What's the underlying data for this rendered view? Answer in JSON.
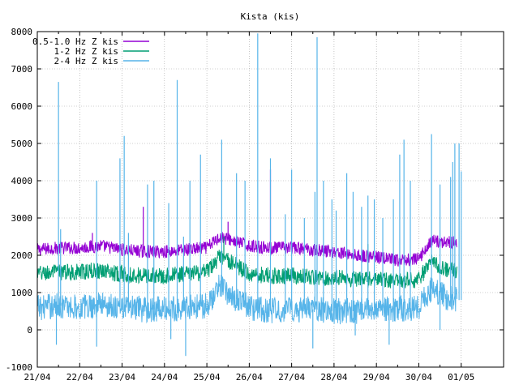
{
  "chart_data": {
    "type": "line",
    "title": "Kista (kis)",
    "xlabel": "",
    "ylabel": "",
    "ylim": [
      -1000,
      8000
    ],
    "yticks": [
      -1000,
      0,
      1000,
      2000,
      3000,
      4000,
      5000,
      6000,
      7000,
      8000
    ],
    "xlim": [
      0,
      11
    ],
    "xticks": [
      {
        "x": 0,
        "label": "21/04"
      },
      {
        "x": 1,
        "label": "22/04"
      },
      {
        "x": 2,
        "label": "23/04"
      },
      {
        "x": 3,
        "label": "24/04"
      },
      {
        "x": 4,
        "label": "25/04"
      },
      {
        "x": 5,
        "label": "26/04"
      },
      {
        "x": 6,
        "label": "27/04"
      },
      {
        "x": 7,
        "label": "28/04"
      },
      {
        "x": 8,
        "label": "29/04"
      },
      {
        "x": 9,
        "label": "30/04"
      },
      {
        "x": 10,
        "label": "01/05"
      }
    ],
    "grid": true,
    "legend": "top-left",
    "series": [
      {
        "name": "0.5-1.0 Hz Z kis",
        "color": "#9400d3",
        "noise": 350,
        "x": [
          0.0,
          0.5,
          1.0,
          1.5,
          2.0,
          2.5,
          3.0,
          3.5,
          4.0,
          4.3,
          4.6,
          5.0,
          5.5,
          6.0,
          6.5,
          7.0,
          7.5,
          8.0,
          8.5,
          9.0,
          9.3,
          9.6,
          9.9
        ],
        "values": [
          2150,
          2200,
          2200,
          2250,
          2150,
          2100,
          2100,
          2150,
          2200,
          2500,
          2400,
          2250,
          2200,
          2200,
          2150,
          2100,
          2000,
          1950,
          1850,
          1900,
          2400,
          2350,
          2350
        ],
        "spikes": [
          [
            4.5,
            2900
          ],
          [
            5.5,
            4300
          ],
          [
            2.5,
            3300
          ],
          [
            1.3,
            2600
          ]
        ]
      },
      {
        "name": "1-2 Hz Z kis",
        "color": "#009e73",
        "noise": 450,
        "x": [
          0.0,
          0.5,
          1.0,
          1.5,
          2.0,
          2.5,
          3.0,
          3.5,
          4.0,
          4.3,
          4.6,
          5.0,
          5.5,
          6.0,
          6.5,
          7.0,
          7.5,
          8.0,
          8.5,
          9.0,
          9.3,
          9.6,
          9.9
        ],
        "values": [
          1500,
          1550,
          1550,
          1600,
          1500,
          1450,
          1450,
          1500,
          1550,
          1950,
          1800,
          1500,
          1450,
          1450,
          1400,
          1400,
          1350,
          1350,
          1300,
          1350,
          1850,
          1650,
          1550
        ],
        "spikes": [
          [
            4.4,
            2500
          ],
          [
            7.8,
            2300
          ]
        ]
      },
      {
        "name": "2-4 Hz Z kis",
        "color": "#56b4e9",
        "noise": 700,
        "x": [
          0.0,
          0.5,
          1.0,
          1.5,
          2.0,
          2.5,
          3.0,
          3.5,
          4.0,
          4.3,
          4.6,
          5.0,
          5.5,
          6.0,
          6.5,
          7.0,
          7.5,
          8.0,
          8.5,
          9.0,
          9.3,
          9.6,
          9.9
        ],
        "values": [
          600,
          650,
          600,
          700,
          600,
          550,
          550,
          600,
          650,
          1200,
          900,
          600,
          500,
          550,
          550,
          500,
          500,
          600,
          550,
          600,
          1100,
          900,
          800
        ],
        "spikes": [
          [
            0.5,
            6650
          ],
          [
            0.55,
            2700
          ],
          [
            1.4,
            4000
          ],
          [
            1.95,
            4600
          ],
          [
            2.05,
            5200
          ],
          [
            2.15,
            2600
          ],
          [
            2.6,
            3900
          ],
          [
            2.75,
            4000
          ],
          [
            3.1,
            3400
          ],
          [
            3.3,
            6700
          ],
          [
            3.45,
            2500
          ],
          [
            3.6,
            4000
          ],
          [
            3.85,
            4700
          ],
          [
            4.35,
            5100
          ],
          [
            4.7,
            4200
          ],
          [
            4.9,
            4000
          ],
          [
            5.2,
            7950
          ],
          [
            5.5,
            4600
          ],
          [
            5.85,
            3100
          ],
          [
            6.0,
            4300
          ],
          [
            6.3,
            3000
          ],
          [
            6.55,
            3700
          ],
          [
            6.6,
            7850
          ],
          [
            6.75,
            4000
          ],
          [
            6.95,
            3500
          ],
          [
            7.05,
            3200
          ],
          [
            7.3,
            4200
          ],
          [
            7.45,
            3700
          ],
          [
            7.65,
            3300
          ],
          [
            7.8,
            3600
          ],
          [
            7.95,
            3500
          ],
          [
            8.15,
            3000
          ],
          [
            8.4,
            3500
          ],
          [
            8.55,
            4700
          ],
          [
            8.65,
            5100
          ],
          [
            8.8,
            4000
          ],
          [
            9.3,
            5250
          ],
          [
            9.5,
            3900
          ],
          [
            9.75,
            4100
          ],
          [
            9.8,
            4500
          ],
          [
            9.85,
            5000
          ],
          [
            9.95,
            5000
          ],
          [
            10.0,
            4250
          ]
        ],
        "dips": [
          [
            0.45,
            -400
          ],
          [
            1.4,
            -450
          ],
          [
            3.15,
            -250
          ],
          [
            3.5,
            -700
          ],
          [
            6.5,
            -500
          ],
          [
            7.5,
            -150
          ],
          [
            8.3,
            -400
          ],
          [
            9.5,
            0
          ]
        ]
      }
    ]
  }
}
